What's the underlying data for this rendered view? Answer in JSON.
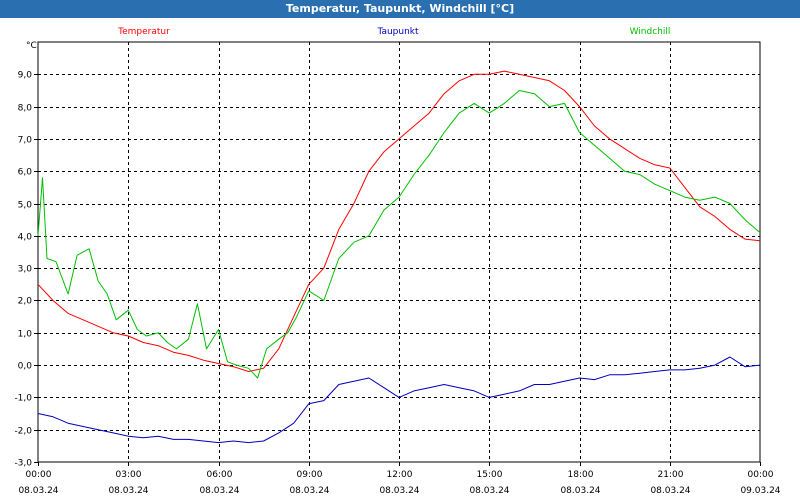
{
  "chart_data": {
    "type": "line",
    "title": "Temperatur, Taupunkt, Windchill [°C]",
    "ylabel": "°C",
    "ylim": [
      -3,
      10
    ],
    "yticks": [
      {
        "v": 9,
        "label": "9,0"
      },
      {
        "v": 8,
        "label": "8,0"
      },
      {
        "v": 7,
        "label": "7,0"
      },
      {
        "v": 6,
        "label": "6,0"
      },
      {
        "v": 5,
        "label": "5,0"
      },
      {
        "v": 4,
        "label": "4,0"
      },
      {
        "v": 3,
        "label": "3,0"
      },
      {
        "v": 2,
        "label": "2,0"
      },
      {
        "v": 1,
        "label": "1,0"
      },
      {
        "v": 0,
        "label": "0,0"
      },
      {
        "v": -1,
        "label": "-1,0"
      },
      {
        "v": -2,
        "label": "-2,0"
      },
      {
        "v": -3,
        "label": "-3,0"
      }
    ],
    "xlim": [
      0,
      24
    ],
    "xticks": [
      {
        "h": 0,
        "time": "00:00",
        "date": "08.03.24"
      },
      {
        "h": 3,
        "time": "03:00",
        "date": "08.03.24"
      },
      {
        "h": 6,
        "time": "06:00",
        "date": "08.03.24"
      },
      {
        "h": 9,
        "time": "09:00",
        "date": "08.03.24"
      },
      {
        "h": 12,
        "time": "12:00",
        "date": "08.03.24"
      },
      {
        "h": 15,
        "time": "15:00",
        "date": "08.03.24"
      },
      {
        "h": 18,
        "time": "18:00",
        "date": "08.03.24"
      },
      {
        "h": 21,
        "time": "21:00",
        "date": "08.03.24"
      },
      {
        "h": 24,
        "time": "00:00",
        "date": "09.03.24"
      }
    ],
    "series": [
      {
        "name": "Temperatur",
        "color": "#ff0000",
        "x": [
          0,
          0.5,
          1,
          1.5,
          2,
          2.5,
          3,
          3.5,
          4,
          4.5,
          5,
          5.5,
          6,
          6.5,
          7,
          7.5,
          8,
          8.5,
          9,
          9.5,
          10,
          10.5,
          11,
          11.5,
          12,
          12.5,
          13,
          13.5,
          14,
          14.5,
          15,
          15.5,
          16,
          16.5,
          17,
          17.5,
          18,
          18.5,
          19,
          19.5,
          20,
          20.5,
          21,
          21.5,
          22,
          22.5,
          23,
          23.5,
          24
        ],
        "y": [
          2.5,
          2.0,
          1.6,
          1.4,
          1.2,
          1.0,
          0.9,
          0.7,
          0.6,
          0.4,
          0.3,
          0.15,
          0.05,
          -0.05,
          -0.2,
          -0.1,
          0.5,
          1.5,
          2.5,
          3.0,
          4.2,
          5.0,
          6.0,
          6.6,
          7.0,
          7.4,
          7.8,
          8.4,
          8.8,
          9.0,
          9.0,
          9.1,
          9.0,
          8.9,
          8.8,
          8.5,
          8.0,
          7.4,
          7.0,
          6.7,
          6.4,
          6.2,
          6.1,
          5.5,
          4.9,
          4.6,
          4.2,
          3.9,
          3.85
        ]
      },
      {
        "name": "Taupunkt",
        "color": "#0000c0",
        "x": [
          0,
          0.5,
          1,
          1.5,
          2,
          2.5,
          3,
          3.5,
          4,
          4.5,
          5,
          5.5,
          6,
          6.5,
          7,
          7.5,
          8,
          8.5,
          9,
          9.5,
          10,
          10.5,
          11,
          11.5,
          12,
          12.5,
          13,
          13.5,
          14,
          14.5,
          15,
          15.5,
          16,
          16.5,
          17,
          17.5,
          18,
          18.5,
          19,
          19.5,
          20,
          20.5,
          21,
          21.5,
          22,
          22.5,
          23,
          23.5,
          24
        ],
        "y": [
          -1.5,
          -1.6,
          -1.8,
          -1.9,
          -2.0,
          -2.1,
          -2.2,
          -2.25,
          -2.2,
          -2.3,
          -2.3,
          -2.35,
          -2.4,
          -2.35,
          -2.4,
          -2.35,
          -2.1,
          -1.8,
          -1.2,
          -1.1,
          -0.6,
          -0.5,
          -0.4,
          -0.7,
          -1.0,
          -0.8,
          -0.7,
          -0.6,
          -0.7,
          -0.8,
          -1.0,
          -0.9,
          -0.8,
          -0.6,
          -0.6,
          -0.5,
          -0.4,
          -0.45,
          -0.3,
          -0.3,
          -0.25,
          -0.2,
          -0.15,
          -0.15,
          -0.1,
          0.0,
          0.25,
          -0.05,
          0.0
        ]
      },
      {
        "name": "Windchill",
        "color": "#00c000",
        "x": [
          0,
          0.15,
          0.3,
          0.6,
          1,
          1.3,
          1.7,
          2.0,
          2.3,
          2.6,
          3,
          3.3,
          3.6,
          4,
          4.3,
          4.6,
          5,
          5.3,
          5.6,
          6,
          6.3,
          6.6,
          7,
          7.3,
          7.6,
          8,
          8.3,
          8.6,
          9,
          9.5,
          10,
          10.5,
          11,
          11.5,
          12,
          12.5,
          13,
          13.5,
          14,
          14.5,
          15,
          15.5,
          16,
          16.5,
          17,
          17.5,
          18,
          18.5,
          19,
          19.5,
          20,
          20.5,
          21,
          21.5,
          22,
          22.5,
          23,
          23.5,
          24
        ],
        "y": [
          4.0,
          5.8,
          3.3,
          3.2,
          2.2,
          3.4,
          3.6,
          2.6,
          2.2,
          1.4,
          1.7,
          1.1,
          0.9,
          1.0,
          0.7,
          0.5,
          0.8,
          1.9,
          0.5,
          1.1,
          0.1,
          0.0,
          -0.1,
          -0.4,
          0.5,
          0.8,
          1.0,
          1.5,
          2.3,
          2.0,
          3.3,
          3.8,
          4.0,
          4.8,
          5.2,
          5.9,
          6.5,
          7.2,
          7.8,
          8.1,
          7.8,
          8.1,
          8.5,
          8.4,
          8.0,
          8.1,
          7.2,
          6.8,
          6.4,
          6.0,
          5.9,
          5.6,
          5.4,
          5.2,
          5.1,
          5.2,
          5.0,
          4.5,
          4.1
        ]
      }
    ]
  }
}
